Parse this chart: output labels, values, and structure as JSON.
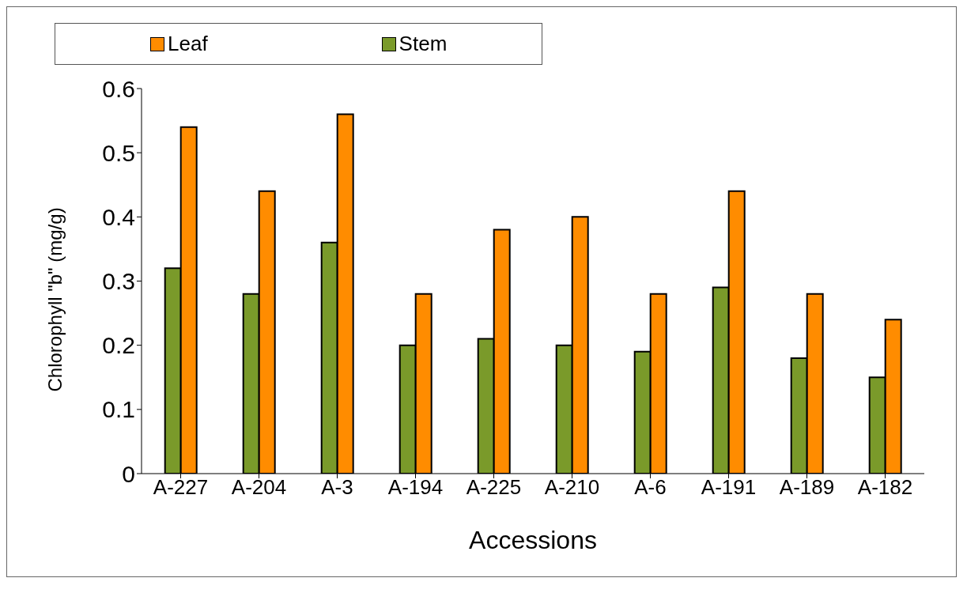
{
  "chart_data": {
    "type": "bar",
    "xlabel": "Accessions",
    "ylabel": "Chlorophyll  \"b\" (mg/g)",
    "categories": [
      "A-227",
      "A-204",
      "A-3",
      "A-194",
      "A-225",
      "A-210",
      "A-6",
      "A-191",
      "A-189",
      "A-182"
    ],
    "series": [
      {
        "name": "Stem",
        "color": "#7a9a2a",
        "values": [
          0.32,
          0.28,
          0.36,
          0.2,
          0.21,
          0.2,
          0.19,
          0.29,
          0.18,
          0.15
        ]
      },
      {
        "name": "Leaf",
        "color": "#ff8c00",
        "values": [
          0.54,
          0.44,
          0.56,
          0.28,
          0.38,
          0.4,
          0.28,
          0.44,
          0.28,
          0.24
        ]
      }
    ],
    "ylim": [
      0,
      0.6
    ],
    "yticks": [
      0,
      0.1,
      0.2,
      0.3,
      0.4,
      0.5,
      0.6
    ],
    "grid": false,
    "legend": "top"
  }
}
